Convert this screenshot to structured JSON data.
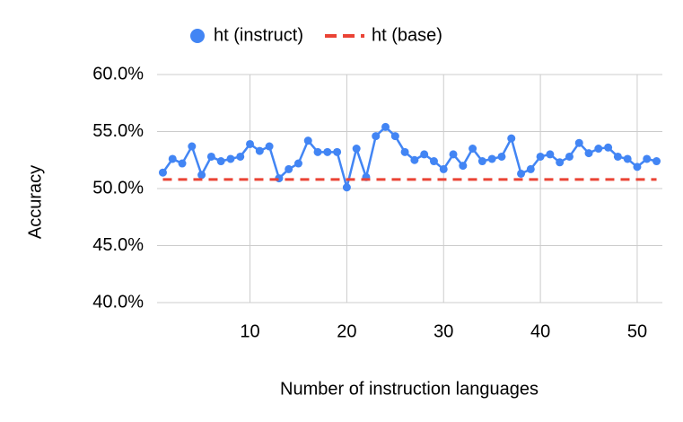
{
  "chart_data": {
    "type": "line",
    "x_label": "Number of instruction languages",
    "y_label": "Accuracy",
    "xlim": [
      0.4,
      52.6
    ],
    "xticks": [
      10,
      20,
      30,
      40,
      50
    ],
    "ylim": [
      40,
      60
    ],
    "yticks": [
      {
        "value": 40,
        "label": "40.0%"
      },
      {
        "value": 45,
        "label": "45.0%"
      },
      {
        "value": 50,
        "label": "50.0%"
      },
      {
        "value": 55,
        "label": "55.0%"
      },
      {
        "value": 60,
        "label": "60.0%"
      }
    ],
    "grid": true,
    "legend": "top",
    "series": [
      {
        "name": "ht (instruct)",
        "color": "#4285f4",
        "style": "solid-markers",
        "x": [
          1,
          2,
          3,
          4,
          5,
          6,
          7,
          8,
          9,
          10,
          11,
          12,
          13,
          14,
          15,
          16,
          17,
          18,
          19,
          20,
          21,
          22,
          23,
          24,
          25,
          26,
          27,
          28,
          29,
          30,
          31,
          32,
          33,
          34,
          35,
          36,
          37,
          38,
          39,
          40,
          41,
          42,
          43,
          44,
          45,
          46,
          47,
          48,
          49,
          50,
          51,
          52
        ],
        "values": [
          51.4,
          52.6,
          52.2,
          53.7,
          51.2,
          52.8,
          52.4,
          52.6,
          52.8,
          53.9,
          53.3,
          53.7,
          50.9,
          51.7,
          52.2,
          54.2,
          53.2,
          53.2,
          53.2,
          50.1,
          53.5,
          51.0,
          54.6,
          55.4,
          54.6,
          53.2,
          52.5,
          53.0,
          52.4,
          51.7,
          53.0,
          52.0,
          53.5,
          52.4,
          52.6,
          52.8,
          54.4,
          51.3,
          51.7,
          52.8,
          53.0,
          52.3,
          52.8,
          54.0,
          53.1,
          53.5,
          53.6,
          52.8,
          52.6,
          51.9,
          52.6,
          52.4
        ]
      },
      {
        "name": "ht (base)",
        "color": "#ea4335",
        "style": "dashed",
        "x": [
          1,
          52
        ],
        "values": [
          50.8,
          50.8
        ]
      }
    ]
  }
}
